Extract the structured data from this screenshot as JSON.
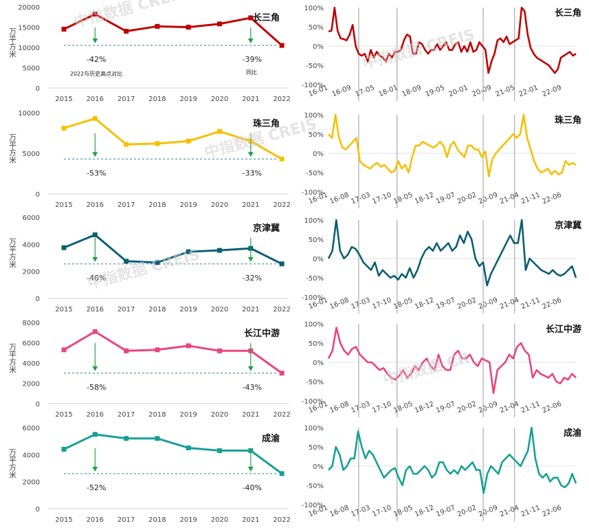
{
  "watermarks": [
    "中指数据 CREIS",
    "中指数据 CREIS",
    "中指数据 CREIS",
    "中指数据 CREIS",
    "中指数据 CR"
  ],
  "annual_note": "2022与历史高点对比",
  "yoy_note": "同比",
  "chart_data": [
    {
      "type": "line",
      "region": "长三角",
      "color": "#c00000",
      "ylabel": "万平方米",
      "ylim": [
        0,
        20000
      ],
      "yticks": [
        "20000",
        "15000",
        "10000",
        "5000",
        "0"
      ],
      "categories": [
        "2015",
        "2016",
        "2017",
        "2018",
        "2019",
        "2020",
        "2021",
        "2022"
      ],
      "values": [
        14500,
        18200,
        14000,
        15200,
        15000,
        15800,
        17300,
        10500
      ],
      "drop_vs_peak": "-42%",
      "drop_yoy": "-39%"
    },
    {
      "type": "line",
      "region": "珠三角",
      "color": "#f5c000",
      "ylabel": "万平方米",
      "ylim": [
        0,
        10000
      ],
      "yticks": [
        "10000",
        "5000",
        "0"
      ],
      "categories": [
        "2015",
        "2016",
        "2017",
        "2018",
        "2019",
        "2020",
        "2021",
        "2022"
      ],
      "values": [
        8100,
        9300,
        6100,
        6200,
        6500,
        7700,
        6500,
        4300
      ],
      "drop_vs_peak": "-53%",
      "drop_yoy": "-33%"
    },
    {
      "type": "line",
      "region": "京津冀",
      "color": "#0b5f73",
      "ylabel": "万平方米",
      "ylim": [
        0,
        6000
      ],
      "yticks": [
        "6000",
        "4000",
        "2000",
        "0"
      ],
      "categories": [
        "2015",
        "2016",
        "2017",
        "2018",
        "2019",
        "2020",
        "2021",
        "2022"
      ],
      "values": [
        3750,
        4700,
        2750,
        2650,
        3450,
        3550,
        3700,
        2550
      ],
      "drop_vs_peak": "-46%",
      "drop_yoy": "-32%"
    },
    {
      "type": "line",
      "region": "长江中游",
      "color": "#e8457a",
      "ylabel": "万平方米",
      "ylim": [
        0,
        8000
      ],
      "yticks": [
        "8000",
        "6000",
        "4000",
        "2000",
        "0"
      ],
      "categories": [
        "2015",
        "2016",
        "2017",
        "2018",
        "2019",
        "2020",
        "2021",
        "2022"
      ],
      "values": [
        5300,
        7100,
        5200,
        5300,
        5700,
        5200,
        5200,
        3000
      ],
      "drop_vs_peak": "-58%",
      "drop_yoy": "-43%"
    },
    {
      "type": "line",
      "region": "成渝",
      "color": "#16a096",
      "ylabel": "万平方米",
      "ylim": [
        0,
        6000
      ],
      "yticks": [
        "6000",
        "4000",
        "2000",
        "0"
      ],
      "categories": [
        "2015",
        "2016",
        "2017",
        "2018",
        "2019",
        "2020",
        "2021",
        "2022"
      ],
      "values": [
        4400,
        5500,
        5200,
        5200,
        4500,
        4300,
        4300,
        2600
      ],
      "drop_vs_peak": "-52%",
      "drop_yoy": "-40%"
    },
    {
      "type": "line",
      "region": "长三角",
      "color": "#c00000",
      "ylim": [
        -100,
        100
      ],
      "yticks": [
        "100%",
        "50%",
        "0%",
        "-50%",
        "-100%"
      ],
      "xticks": [
        "16-01",
        "16-09",
        "17-05",
        "18-01",
        "18-09",
        "19-05",
        "20-01",
        "20-09",
        "21-05",
        "22-01",
        "22-09"
      ],
      "values": [
        38,
        40,
        100,
        40,
        20,
        18,
        15,
        30,
        55,
        0,
        -20,
        -25,
        -20,
        -40,
        -10,
        -30,
        -15,
        -25,
        -30,
        -40,
        -20,
        -30,
        -15,
        -15,
        -10,
        15,
        30,
        25,
        -20,
        -20,
        10,
        5,
        -10,
        -20,
        -10,
        -10,
        5,
        -10,
        0,
        10,
        -10,
        -10,
        5,
        10,
        -15,
        0,
        -15,
        10,
        -15,
        -10,
        10,
        0,
        -10,
        -70,
        -40,
        -20,
        15,
        20,
        10,
        25,
        5,
        10,
        15,
        20,
        100,
        90,
        30,
        -5,
        -20,
        -30,
        -35,
        -40,
        -45,
        -50,
        -60,
        -70,
        -60,
        -30,
        -25,
        -20,
        -15,
        -25,
        -20
      ],
      "vlines": [
        "16-09",
        "18-01",
        "20-09",
        "21-05"
      ]
    },
    {
      "type": "line",
      "region": "珠三角",
      "color": "#f5c000",
      "ylim": [
        -100,
        100
      ],
      "yticks": [
        "100%",
        "50%",
        "0%",
        "-50%",
        "-100%"
      ],
      "xticks": [
        "16-01",
        "16-08",
        "17-03",
        "17-10",
        "18-05",
        "18-12",
        "19-07",
        "20-02",
        "20-09",
        "21-04",
        "21-11",
        "22-06"
      ],
      "values": [
        50,
        40,
        100,
        40,
        15,
        10,
        20,
        30,
        40,
        -20,
        -30,
        -35,
        -40,
        -30,
        -25,
        -35,
        -30,
        -40,
        -50,
        -45,
        -20,
        -40,
        -30,
        -50,
        -10,
        20,
        20,
        30,
        25,
        20,
        15,
        20,
        30,
        20,
        -10,
        20,
        30,
        10,
        0,
        -10,
        20,
        20,
        10,
        10,
        -10,
        5,
        -60,
        -15,
        0,
        10,
        20,
        30,
        40,
        50,
        40,
        50,
        100,
        40,
        10,
        -20,
        -40,
        -50,
        -45,
        -40,
        -55,
        -45,
        -55,
        -50,
        -20,
        -30,
        -25,
        -30
      ],
      "vlines": [
        "16-08",
        "18-05",
        "20-09",
        "21-04"
      ]
    },
    {
      "type": "line",
      "region": "京津冀",
      "color": "#0b5f73",
      "ylim": [
        -100,
        100
      ],
      "yticks": [
        "100%",
        "50%",
        "0%",
        "-50%",
        "-100%"
      ],
      "xticks": [
        "16-01",
        "16-08",
        "17-03",
        "17-10",
        "18-05",
        "18-12",
        "19-07",
        "20-02",
        "20-09",
        "21-04",
        "21-11",
        "22-06"
      ],
      "values": [
        0,
        20,
        100,
        20,
        0,
        10,
        30,
        25,
        10,
        -10,
        -20,
        -30,
        -10,
        -45,
        -30,
        -40,
        -50,
        -45,
        -55,
        -40,
        -50,
        -25,
        -50,
        -30,
        0,
        20,
        30,
        20,
        40,
        20,
        30,
        40,
        20,
        30,
        60,
        40,
        70,
        50,
        0,
        -20,
        -10,
        -70,
        -40,
        -20,
        0,
        20,
        40,
        60,
        40,
        40,
        100,
        -30,
        0,
        -10,
        -20,
        -30,
        -35,
        -40,
        -30,
        -40,
        -45,
        -40,
        -30,
        -20,
        -50
      ],
      "vlines": [
        "16-08",
        "18-05",
        "20-09",
        "21-04"
      ]
    },
    {
      "type": "line",
      "region": "长江中游",
      "color": "#e8457a",
      "ylim": [
        -100,
        100
      ],
      "yticks": [
        "100%",
        "50%",
        "0%",
        "-50%",
        "-100%"
      ],
      "xticks": [
        "16-01",
        "16-08",
        "17-03",
        "17-10",
        "18-05",
        "18-12",
        "19-07",
        "20-02",
        "20-09",
        "21-04",
        "21-11",
        "22-06"
      ],
      "values": [
        10,
        30,
        90,
        50,
        30,
        20,
        35,
        40,
        20,
        10,
        0,
        0,
        -10,
        -20,
        -15,
        -30,
        -40,
        -45,
        -35,
        -20,
        -40,
        -30,
        -10,
        -20,
        0,
        10,
        -10,
        -20,
        20,
        -10,
        -20,
        -20,
        20,
        30,
        10,
        10,
        20,
        0,
        -10,
        10,
        5,
        0,
        -80,
        -20,
        -10,
        0,
        20,
        10,
        40,
        50,
        30,
        20,
        -40,
        -20,
        -30,
        -35,
        -40,
        -30,
        -50,
        -55,
        -40,
        -45,
        -30,
        -40
      ],
      "vlines": [
        "16-08",
        "18-05",
        "20-09",
        "21-04"
      ]
    },
    {
      "type": "line",
      "region": "成渝",
      "color": "#16a096",
      "ylim": [
        -100,
        100
      ],
      "yticks": [
        "100%",
        "50%",
        "0%",
        "-50%",
        "-100%"
      ],
      "xticks": [
        "16-01",
        "16-08",
        "17-03",
        "17-10",
        "18-05",
        "18-12",
        "19-07",
        "20-02",
        "20-09",
        "21-04",
        "21-11",
        "22-06"
      ],
      "values": [
        -10,
        0,
        50,
        30,
        -10,
        0,
        20,
        20,
        90,
        50,
        20,
        40,
        30,
        10,
        -10,
        -30,
        -20,
        -10,
        -5,
        -30,
        -50,
        -10,
        0,
        -20,
        -20,
        -10,
        0,
        -10,
        -30,
        -20,
        10,
        10,
        -10,
        -20,
        -10,
        -20,
        0,
        -10,
        0,
        10,
        -10,
        -10,
        -70,
        -20,
        0,
        -10,
        -20,
        10,
        20,
        30,
        20,
        10,
        0,
        20,
        40,
        100,
        20,
        -20,
        -30,
        -20,
        -40,
        -30,
        -30,
        -50,
        -55,
        -45,
        -20,
        -45
      ],
      "vlines": [
        "16-08",
        "18-05",
        "20-09",
        "21-04"
      ]
    }
  ]
}
